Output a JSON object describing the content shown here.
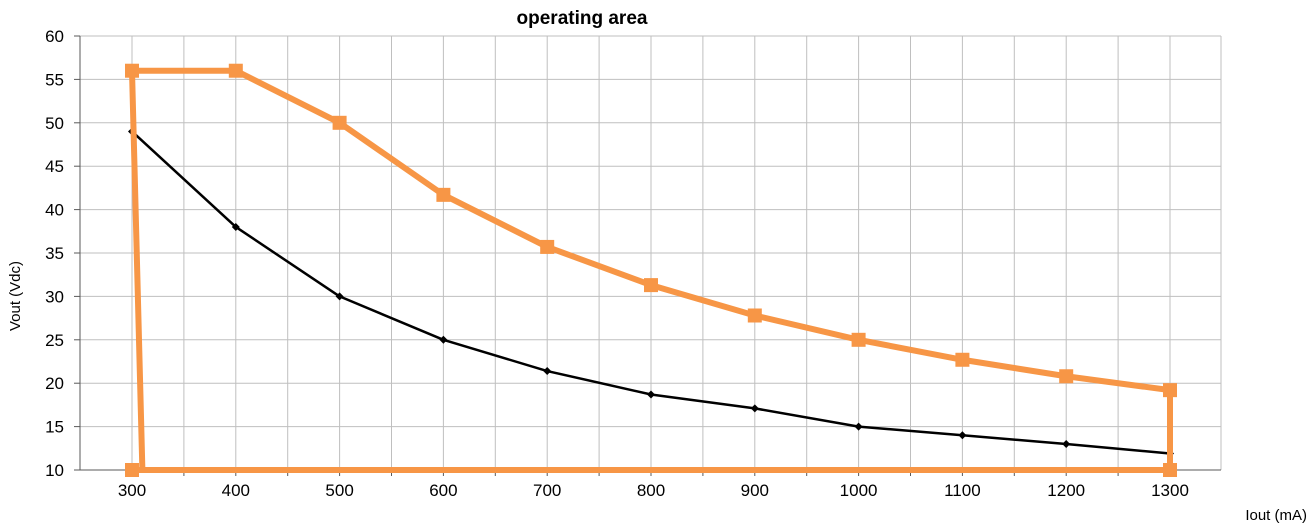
{
  "chart_data": {
    "type": "line",
    "title": "operating area",
    "xlabel": "Iout (mA)",
    "ylabel": "Vout (Vdc)",
    "xlim": [
      300,
      1300
    ],
    "ylim": [
      10,
      60
    ],
    "grid": true,
    "x_ticks": [
      300,
      400,
      500,
      600,
      700,
      800,
      900,
      1000,
      1100,
      1200,
      1300
    ],
    "y_ticks": [
      10,
      15,
      20,
      25,
      30,
      35,
      40,
      45,
      50,
      55,
      60
    ],
    "colors": {
      "orange": "#F79646",
      "black": "#000000",
      "grid": "#BFBFBF"
    },
    "series": [
      {
        "color": "#000000",
        "marker": "diamond",
        "points": [
          {
            "x": 300,
            "y": 49
          },
          {
            "x": 400,
            "y": 38
          },
          {
            "x": 500,
            "y": 30
          },
          {
            "x": 600,
            "y": 25
          },
          {
            "x": 700,
            "y": 21.4
          },
          {
            "x": 800,
            "y": 18.7
          },
          {
            "x": 900,
            "y": 17.1
          },
          {
            "x": 1000,
            "y": 15
          },
          {
            "x": 1100,
            "y": 14
          },
          {
            "x": 1200,
            "y": 13
          },
          {
            "x": 1300,
            "y": 11.9
          }
        ]
      },
      {
        "color": "#F79646",
        "marker": "square",
        "closed_boundary": true,
        "points": [
          {
            "x": 310,
            "y": 10
          },
          {
            "x": 300,
            "y": 56
          },
          {
            "x": 400,
            "y": 56
          },
          {
            "x": 500,
            "y": 50
          },
          {
            "x": 600,
            "y": 41.7
          },
          {
            "x": 700,
            "y": 35.7
          },
          {
            "x": 800,
            "y": 31.3
          },
          {
            "x": 900,
            "y": 27.8
          },
          {
            "x": 1000,
            "y": 25
          },
          {
            "x": 1100,
            "y": 22.7
          },
          {
            "x": 1200,
            "y": 20.8
          },
          {
            "x": 1300,
            "y": 19.2
          },
          {
            "x": 1300,
            "y": 10
          },
          {
            "x": 300,
            "y": 10
          }
        ],
        "marker_points": [
          {
            "x": 300,
            "y": 56
          },
          {
            "x": 400,
            "y": 56
          },
          {
            "x": 500,
            "y": 50
          },
          {
            "x": 600,
            "y": 41.7
          },
          {
            "x": 700,
            "y": 35.7
          },
          {
            "x": 800,
            "y": 31.3
          },
          {
            "x": 900,
            "y": 27.8
          },
          {
            "x": 1000,
            "y": 25
          },
          {
            "x": 1100,
            "y": 22.7
          },
          {
            "x": 1200,
            "y": 20.8
          },
          {
            "x": 1300,
            "y": 19.2
          },
          {
            "x": 300,
            "y": 10
          },
          {
            "x": 1300,
            "y": 10
          }
        ]
      }
    ]
  }
}
